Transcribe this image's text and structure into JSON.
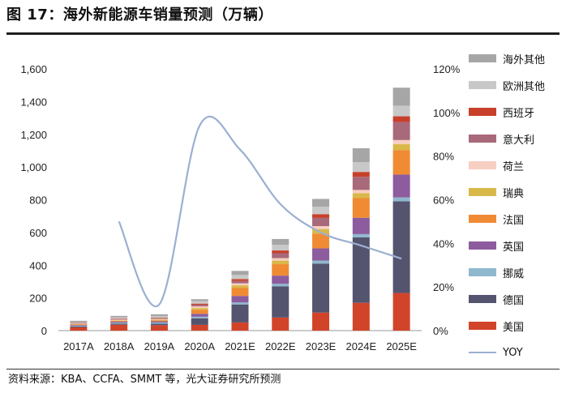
{
  "title": "图 17：海外新能源车销量预测（万辆）",
  "source": "资料来源：KBA、CCFA、SMMT 等，光大证券研究所预测",
  "chart_data": {
    "type": "bar",
    "stacked": true,
    "categories": [
      "2017A",
      "2018A",
      "2019A",
      "2020A",
      "2021E",
      "2022E",
      "2023E",
      "2024E",
      "2025E"
    ],
    "ylim": [
      0,
      1600
    ],
    "yticks": [
      "0",
      "200",
      "400",
      "600",
      "800",
      "1,000",
      "1,200",
      "1,400",
      "1,600"
    ],
    "y2lim": [
      0,
      1.2
    ],
    "y2ticks": [
      "0%",
      "20%",
      "40%",
      "60%",
      "80%",
      "100%",
      "120%"
    ],
    "legend_position": "right",
    "grid": false,
    "series": [
      {
        "name": "美国",
        "color": "#D2442A",
        "values": [
          20,
          36,
          33,
          35,
          50,
          80,
          110,
          170,
          230
        ]
      },
      {
        "name": "德国",
        "color": "#55546F",
        "values": [
          5,
          7,
          9,
          40,
          110,
          190,
          300,
          400,
          560
        ]
      },
      {
        "name": "挪威",
        "color": "#8FB8CE",
        "values": [
          4,
          6,
          8,
          10,
          12,
          16,
          18,
          20,
          24
        ]
      },
      {
        "name": "英国",
        "color": "#8C5C9E",
        "values": [
          5,
          6,
          7,
          18,
          40,
          50,
          75,
          100,
          140
        ]
      },
      {
        "name": "法国",
        "color": "#F08B33",
        "values": [
          4,
          5,
          6,
          25,
          50,
          70,
          90,
          120,
          150
        ]
      },
      {
        "name": "瑞典",
        "color": "#D9B84A",
        "values": [
          2,
          3,
          4,
          10,
          15,
          22,
          28,
          30,
          36
        ]
      },
      {
        "name": "荷兰",
        "color": "#F7CFC2",
        "values": [
          3,
          4,
          5,
          10,
          12,
          15,
          18,
          20,
          25
        ]
      },
      {
        "name": "意大利",
        "color": "#A8697A",
        "values": [
          2,
          3,
          4,
          10,
          15,
          30,
          50,
          80,
          110
        ]
      },
      {
        "name": "西班牙",
        "color": "#C8402A",
        "values": [
          2,
          3,
          3,
          7,
          11,
          17,
          23,
          30,
          35
        ]
      },
      {
        "name": "欧洲其他",
        "color": "#C8C8C8",
        "values": [
          5,
          8,
          10,
          15,
          25,
          35,
          45,
          60,
          65
        ]
      },
      {
        "name": "海外其他",
        "color": "#A6A6A6",
        "values": [
          8,
          9,
          11,
          12,
          25,
          35,
          48,
          85,
          110
        ]
      }
    ],
    "line_series": {
      "name": "YOY",
      "color": "#9BB0D0",
      "axis": "right",
      "values": [
        null,
        0.5,
        0.12,
        0.94,
        0.83,
        0.58,
        0.45,
        0.39,
        0.33
      ]
    }
  }
}
